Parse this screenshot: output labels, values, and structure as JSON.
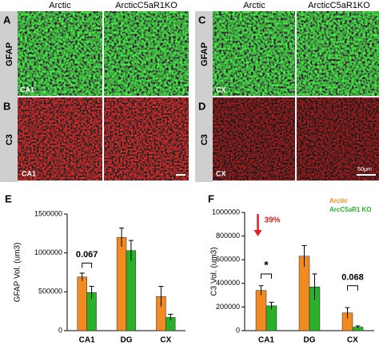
{
  "image_panels": {
    "columns": [
      "Arctic",
      "ArcticC5aR1KO"
    ],
    "left": {
      "letters": [
        "A",
        "B"
      ],
      "rows": [
        "GFAP",
        "C3"
      ],
      "regions": [
        "CA1",
        "CA1"
      ]
    },
    "right": {
      "letters": [
        "C",
        "D"
      ],
      "rows": [
        "GFAP",
        "C3"
      ],
      "regions": [
        "CX",
        "CX"
      ],
      "scale_bar": "50μm"
    }
  },
  "chart_data": [
    {
      "type": "bar",
      "panel_label": "E",
      "ylabel": "GFAP Vol. (um3)",
      "categories": [
        "CA1",
        "DG",
        "CX"
      ],
      "series": [
        {
          "color": "#f28a22",
          "values": [
            690000,
            1200000,
            440000
          ],
          "errors": [
            50000,
            120000,
            130000
          ]
        },
        {
          "color": "#2ab02a",
          "values": [
            490000,
            1030000,
            170000
          ],
          "errors": [
            80000,
            130000,
            40000
          ]
        }
      ],
      "ylim": [
        0,
        1500000
      ],
      "yticks": [
        0,
        500000,
        1000000,
        1500000
      ],
      "annotations": [
        "0.067"
      ]
    },
    {
      "type": "bar",
      "panel_label": "F",
      "ylabel": "C3 Vol. (um3)",
      "categories": [
        "CA1",
        "DG",
        "CX"
      ],
      "series": [
        {
          "name": "Arctic",
          "color": "#f28a22",
          "values": [
            340000,
            630000,
            150000
          ],
          "errors": [
            40000,
            90000,
            45000
          ]
        },
        {
          "name": "ArcC5aR1 KO",
          "color": "#2ab02a",
          "values": [
            210000,
            370000,
            30000
          ],
          "errors": [
            30000,
            110000,
            10000
          ]
        }
      ],
      "ylim": [
        0,
        1000000
      ],
      "yticks": [
        0,
        200000,
        400000,
        600000,
        800000,
        1000000
      ],
      "annotations": [
        "39%",
        "*",
        "0.068"
      ]
    }
  ]
}
